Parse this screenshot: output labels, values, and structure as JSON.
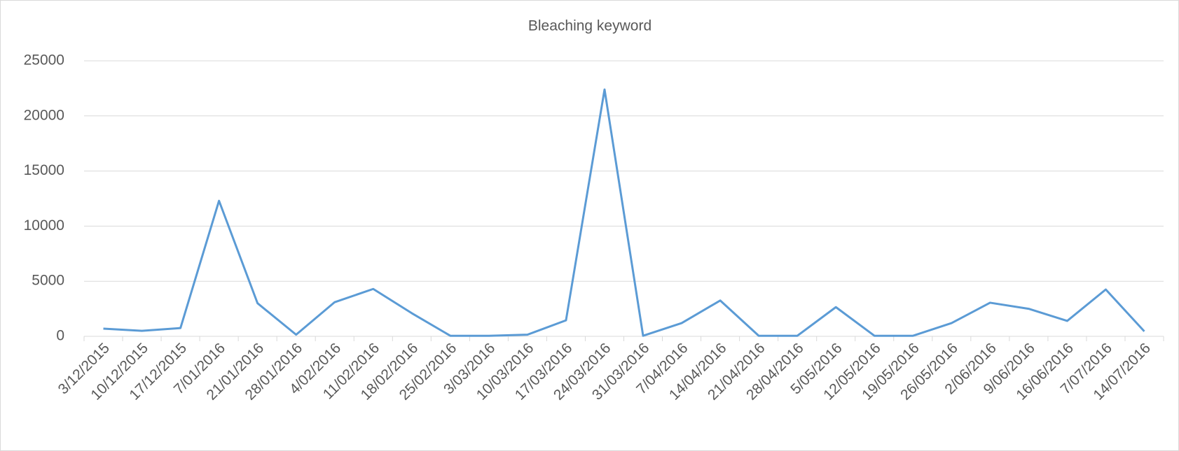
{
  "chart_data": {
    "type": "line",
    "title": "Bleaching keyword",
    "categories": [
      "3/12/2015",
      "10/12/2015",
      "17/12/2015",
      "7/01/2016",
      "21/01/2016",
      "28/01/2016",
      "4/02/2016",
      "11/02/2016",
      "18/02/2016",
      "25/02/2016",
      "3/03/2016",
      "10/03/2016",
      "17/03/2016",
      "24/03/2016",
      "31/03/2016",
      "7/04/2016",
      "14/04/2016",
      "21/04/2016",
      "28/04/2016",
      "5/05/2016",
      "12/05/2016",
      "19/05/2016",
      "26/05/2016",
      "2/06/2016",
      "9/06/2016",
      "16/06/2016",
      "7/07/2016",
      "14/07/2016"
    ],
    "values": [
      700,
      500,
      750,
      12300,
      3000,
      150,
      3100,
      4300,
      2100,
      50,
      50,
      150,
      1450,
      22400,
      50,
      1200,
      3250,
      50,
      50,
      2650,
      50,
      50,
      1200,
      3050,
      2500,
      1400,
      4250,
      450
    ],
    "color": "#5b9bd5",
    "ylim": [
      0,
      25000
    ],
    "yticks": [
      0,
      5000,
      10000,
      15000,
      20000,
      25000
    ],
    "grid": true
  }
}
